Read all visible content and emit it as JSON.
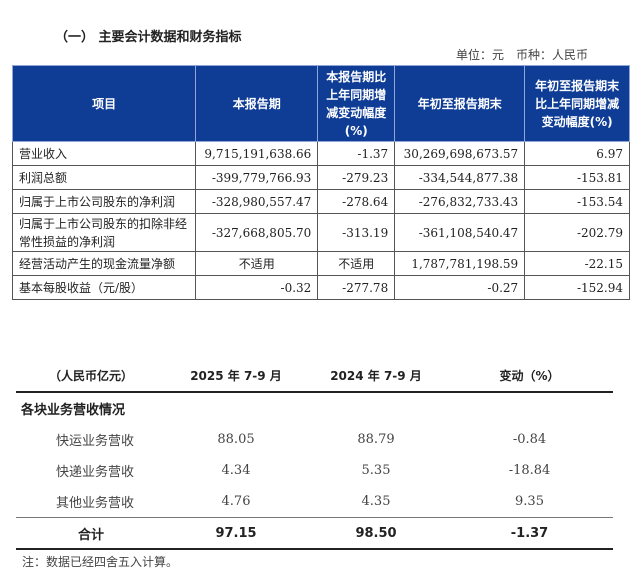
{
  "title": "（一） 主要会计数据和财务指标",
  "unit": "单位：元　币种：人民币",
  "table1": {
    "headers": [
      "项目",
      "本报告期",
      "本报告期比上年同期增减变动幅度(%)",
      "年初至报告期末",
      "年初至报告期末比上年同期增减变动幅度(%)"
    ],
    "rows": [
      [
        "营业收入",
        "9,715,191,638.66",
        "-1.37",
        "30,269,698,673.57",
        "6.97"
      ],
      [
        "利润总额",
        "-399,779,766.93",
        "-279.23",
        "-334,544,877.38",
        "-153.81"
      ],
      [
        "归属于上市公司股东的净利润",
        "-328,980,557.47",
        "-278.64",
        "-276,832,733.43",
        "-153.54"
      ],
      [
        "归属于上市公司股东的扣除非经常性损益的净利润",
        "-327,668,805.70",
        "-313.19",
        "-361,108,540.47",
        "-202.79"
      ],
      [
        "经营活动产生的现金流量净额",
        "不适用",
        "不适用",
        "1,787,781,198.59",
        "-22.15"
      ],
      [
        "基本每股收益（元/股）",
        "-0.32",
        "-277.78",
        "-0.27",
        "-152.94"
      ]
    ]
  },
  "table2": {
    "headers": [
      "（人民币亿元）",
      "2025 年 7-9 月",
      "2024 年 7-9 月",
      "变动（%）"
    ],
    "section": "各块业务营收情况",
    "rows": [
      [
        "快运业务营收",
        "88.05",
        "88.79",
        "-0.84"
      ],
      [
        "快递业务营收",
        "4.34",
        "5.35",
        "-18.84"
      ],
      [
        "其他业务营收",
        "4.76",
        "4.35",
        "9.35"
      ]
    ],
    "total": [
      "合计",
      "97.15",
      "98.50",
      "-1.37"
    ]
  },
  "note": "注：数据已经四舍五入计算。"
}
